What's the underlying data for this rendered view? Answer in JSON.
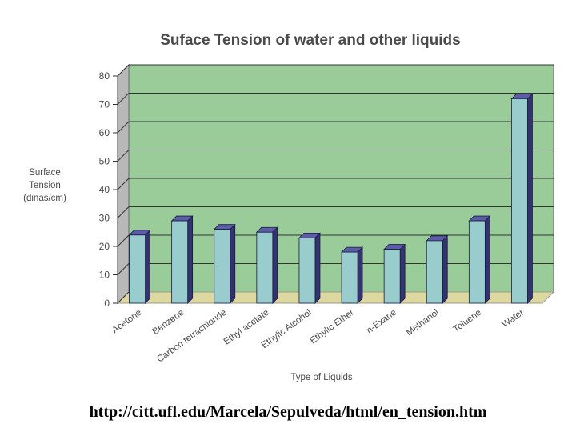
{
  "chart_data": {
    "type": "bar",
    "title": "Suface Tension of water and other liquids",
    "xlabel": "Type of Liquids",
    "ylabel_lines": [
      "Surface",
      "Tension",
      "(dinas/cm)"
    ],
    "categories": [
      "Acetone",
      "Benzene",
      "Carbon tetrachloride",
      "Ethyl acetate",
      "Ethylic Alcohol",
      "Ethylic Ether",
      "n-Exane",
      "Methanol",
      "Toluene",
      "Water"
    ],
    "values": [
      24,
      29,
      26,
      25,
      23,
      18,
      19,
      22,
      29,
      72
    ],
    "yticks": [
      "0",
      "10",
      "20",
      "30",
      "40",
      "50",
      "60",
      "70",
      "80"
    ],
    "ylim": [
      0,
      80
    ],
    "grid": true,
    "legend": "none",
    "colors": {
      "plot_bg": "#99cc99",
      "floor": "#ddd7a0",
      "wall_side": "#b8b8b8",
      "bar_front": "#99cccc",
      "bar_side": "#33336e",
      "bar_top": "#5c5ca8",
      "gridline": "#333333"
    }
  },
  "source_url": "http://citt.ufl.edu/Marcela/Sepulveda/html/en_tension.htm"
}
